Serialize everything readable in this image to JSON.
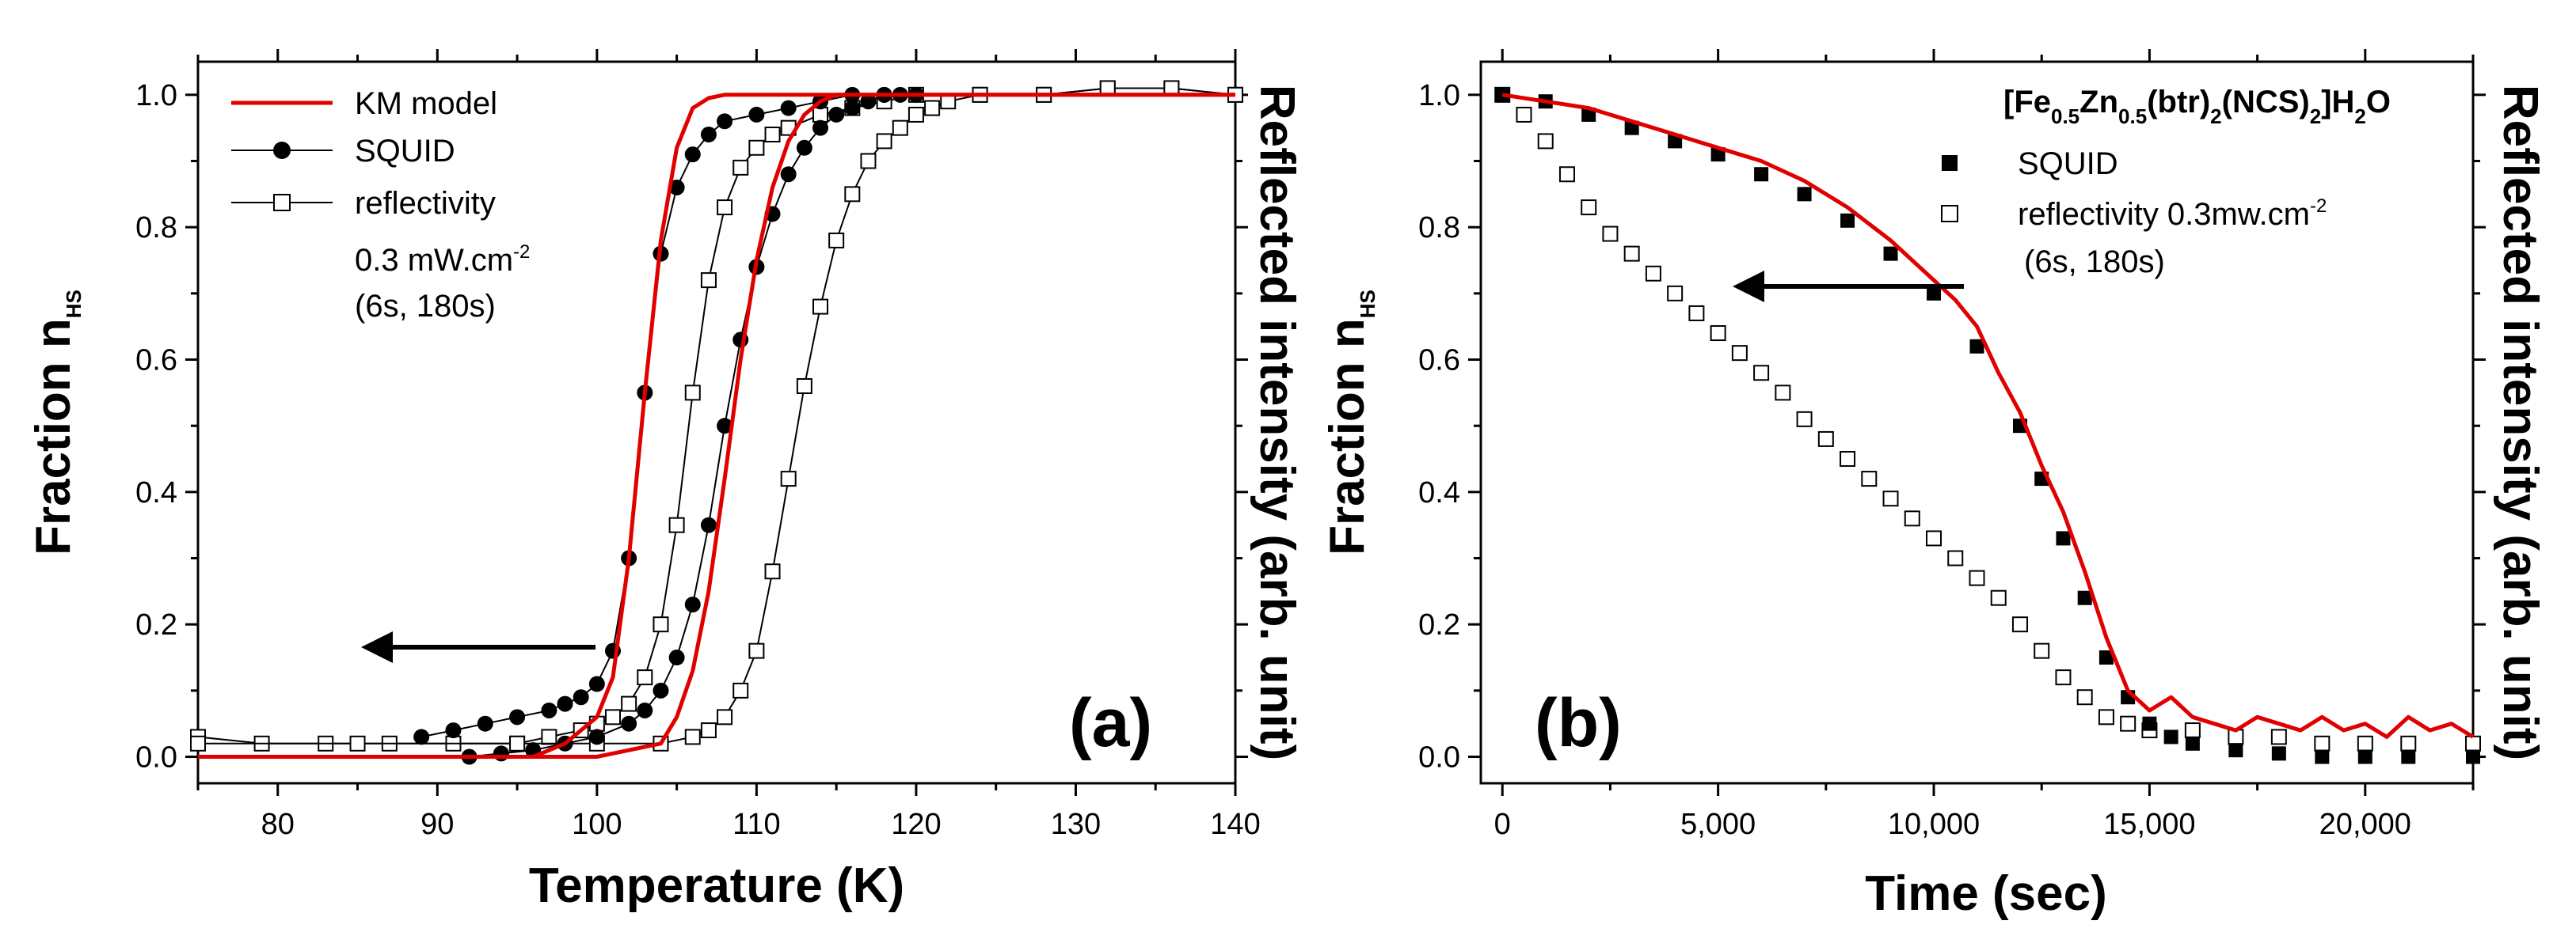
{
  "chart_data": [
    {
      "panel": "a",
      "type": "line",
      "panel_label": "(a)",
      "xlabel": "Temperature (K)",
      "ylabel": "Fraction n",
      "ylabel_sub": "HS",
      "y2label": "Reflected intensity (arb. unit)",
      "xlim": [
        75,
        140
      ],
      "ylim": [
        -0.04,
        1.05
      ],
      "xticks": [
        80,
        90,
        100,
        110,
        120,
        130,
        140
      ],
      "yticks": [
        0.0,
        0.2,
        0.4,
        0.6,
        0.8,
        1.0
      ],
      "ytick_labels": [
        "0.0",
        "0.2",
        "0.4",
        "0.6",
        "0.8",
        "1.0"
      ],
      "legend": [
        {
          "label": "KM model",
          "style": "red-line"
        },
        {
          "label": "SQUID",
          "style": "filled-circle"
        },
        {
          "label": "reflectivity",
          "style": "open-square"
        }
      ],
      "legend_note_1": "0.3 mW.cm",
      "legend_note_1_sup": "-2",
      "legend_note_2": "(6s, 180s)",
      "arrow_direction": "left",
      "series": [
        {
          "name": "KM model",
          "branch": "cooling",
          "x": [
            75,
            96,
            97,
            98,
            99,
            100,
            101,
            102,
            103,
            104,
            105,
            106,
            107,
            108,
            110,
            115,
            140
          ],
          "y": [
            0.0,
            0.0,
            0.01,
            0.02,
            0.04,
            0.06,
            0.12,
            0.3,
            0.55,
            0.78,
            0.92,
            0.98,
            0.995,
            1.0,
            1.0,
            1.0,
            1.0
          ]
        },
        {
          "name": "KM model",
          "branch": "heating",
          "x": [
            75,
            100,
            104,
            105,
            106,
            107,
            108,
            109,
            110,
            111,
            112,
            113,
            114,
            115,
            116,
            120,
            140
          ],
          "y": [
            0.0,
            0.0,
            0.02,
            0.06,
            0.13,
            0.25,
            0.42,
            0.6,
            0.75,
            0.86,
            0.93,
            0.97,
            0.99,
            1.0,
            1.0,
            1.0,
            1.0
          ]
        },
        {
          "name": "SQUID",
          "branch": "cooling",
          "x": [
            89,
            91,
            93,
            95,
            97,
            98,
            99,
            100,
            101,
            102,
            103,
            104,
            105,
            106,
            107,
            108,
            110,
            112,
            114,
            116,
            118,
            120
          ],
          "y": [
            0.03,
            0.04,
            0.05,
            0.06,
            0.07,
            0.08,
            0.09,
            0.11,
            0.16,
            0.3,
            0.55,
            0.76,
            0.86,
            0.91,
            0.94,
            0.96,
            0.97,
            0.98,
            0.99,
            1.0,
            1.0,
            1.0
          ]
        },
        {
          "name": "SQUID",
          "branch": "heating",
          "x": [
            92,
            94,
            96,
            98,
            100,
            102,
            103,
            104,
            105,
            106,
            107,
            108,
            109,
            110,
            111,
            112,
            113,
            114,
            115,
            116,
            117,
            118,
            119,
            120
          ],
          "y": [
            0.0,
            0.005,
            0.01,
            0.02,
            0.03,
            0.05,
            0.07,
            0.1,
            0.15,
            0.23,
            0.35,
            0.5,
            0.63,
            0.74,
            0.82,
            0.88,
            0.92,
            0.95,
            0.97,
            0.98,
            0.99,
            1.0,
            1.0,
            1.0
          ]
        },
        {
          "name": "reflectivity",
          "branch": "cooling",
          "x": [
            75,
            79,
            83,
            87,
            91,
            95,
            97,
            99,
            100,
            101,
            102,
            103,
            104,
            105,
            106,
            107,
            108,
            109,
            110,
            111,
            112,
            114,
            116,
            118,
            120,
            124,
            128,
            132,
            136,
            140
          ],
          "y": [
            0.03,
            0.02,
            0.02,
            0.02,
            0.02,
            0.02,
            0.03,
            0.04,
            0.05,
            0.06,
            0.08,
            0.12,
            0.2,
            0.35,
            0.55,
            0.72,
            0.83,
            0.89,
            0.92,
            0.94,
            0.95,
            0.97,
            0.98,
            0.99,
            1.0,
            1.0,
            1.0,
            1.01,
            1.01,
            1.0
          ]
        },
        {
          "name": "reflectivity",
          "branch": "heating",
          "x": [
            75,
            85,
            95,
            100,
            104,
            106,
            107,
            108,
            109,
            110,
            111,
            112,
            113,
            114,
            115,
            116,
            117,
            118,
            119,
            120,
            121,
            122,
            124,
            128,
            132,
            136,
            140
          ],
          "y": [
            0.02,
            0.02,
            0.02,
            0.02,
            0.02,
            0.03,
            0.04,
            0.06,
            0.1,
            0.16,
            0.28,
            0.42,
            0.56,
            0.68,
            0.78,
            0.85,
            0.9,
            0.93,
            0.95,
            0.97,
            0.98,
            0.99,
            1.0,
            1.0,
            1.01,
            1.01,
            1.0
          ]
        }
      ]
    },
    {
      "panel": "b",
      "type": "line",
      "panel_label": "(b)",
      "xlabel": "Time (sec)",
      "ylabel": "Fraction n",
      "ylabel_sub": "HS",
      "y2label": "Reflected intensity (arb. unit)",
      "xlim": [
        -500,
        22500
      ],
      "ylim": [
        -0.04,
        1.05
      ],
      "xticks": [
        0,
        5000,
        10000,
        15000,
        20000
      ],
      "xtick_labels": [
        "0",
        "5,000",
        "10,000",
        "15,000",
        "20,000"
      ],
      "yticks": [
        0.0,
        0.2,
        0.4,
        0.6,
        0.8,
        1.0
      ],
      "ytick_labels": [
        "0.0",
        "0.2",
        "0.4",
        "0.6",
        "0.8",
        "1.0"
      ],
      "formula": {
        "parts": [
          {
            "t": "[Fe",
            "k": "n"
          },
          {
            "t": "0.5",
            "k": "sub"
          },
          {
            "t": "Zn",
            "k": "n"
          },
          {
            "t": "0.5",
            "k": "sub"
          },
          {
            "t": "(btr)",
            "k": "n"
          },
          {
            "t": "2",
            "k": "sub"
          },
          {
            "t": "(NCS)",
            "k": "n"
          },
          {
            "t": "2",
            "k": "sub"
          },
          {
            "t": "]H",
            "k": "n"
          },
          {
            "t": "2",
            "k": "sub"
          },
          {
            "t": "O",
            "k": "n"
          }
        ]
      },
      "legend": [
        {
          "label": "SQUID",
          "style": "filled-square"
        },
        {
          "label": "reflectivity 0.3mw.cm",
          "label_sup": "-2",
          "style": "open-square"
        }
      ],
      "legend_note": "(6s, 180s)",
      "arrow_direction": "left",
      "series": [
        {
          "name": "SQUID",
          "x": [
            0,
            1000,
            2000,
            3000,
            4000,
            5000,
            6000,
            7000,
            8000,
            9000,
            10000,
            11000,
            12000,
            12500,
            13000,
            13500,
            14000,
            14500,
            15000,
            15500,
            16000,
            17000,
            18000,
            19000,
            20000,
            21000,
            22500
          ],
          "y": [
            1.0,
            0.99,
            0.97,
            0.95,
            0.93,
            0.91,
            0.88,
            0.85,
            0.81,
            0.76,
            0.7,
            0.62,
            0.5,
            0.42,
            0.33,
            0.24,
            0.15,
            0.09,
            0.05,
            0.03,
            0.02,
            0.01,
            0.005,
            0.0,
            0.0,
            0.0,
            0.0
          ]
        },
        {
          "name": "KM model",
          "x": [
            0,
            1000,
            2000,
            3000,
            4000,
            5000,
            6000,
            7000,
            8000,
            9000,
            10000,
            10500,
            11000,
            11500,
            12000,
            12500,
            13000,
            13500,
            14000,
            14500,
            15000,
            15500,
            16000,
            16500,
            17000,
            17500,
            18000,
            18500,
            19000,
            19500,
            20000,
            20500,
            21000,
            21500,
            22000,
            22500
          ],
          "y": [
            1.0,
            0.99,
            0.98,
            0.96,
            0.94,
            0.92,
            0.9,
            0.87,
            0.83,
            0.78,
            0.72,
            0.69,
            0.65,
            0.58,
            0.52,
            0.44,
            0.37,
            0.28,
            0.18,
            0.1,
            0.07,
            0.09,
            0.06,
            0.05,
            0.04,
            0.06,
            0.05,
            0.04,
            0.06,
            0.04,
            0.05,
            0.03,
            0.06,
            0.04,
            0.05,
            0.03
          ]
        },
        {
          "name": "reflectivity",
          "x": [
            0,
            500,
            1000,
            1500,
            2000,
            2500,
            3000,
            3500,
            4000,
            4500,
            5000,
            5500,
            6000,
            6500,
            7000,
            7500,
            8000,
            8500,
            9000,
            9500,
            10000,
            10500,
            11000,
            11500,
            12000,
            12500,
            13000,
            13500,
            14000,
            14500,
            15000,
            16000,
            17000,
            18000,
            19000,
            20000,
            21000,
            22500
          ],
          "y": [
            1.0,
            0.97,
            0.93,
            0.88,
            0.83,
            0.79,
            0.76,
            0.73,
            0.7,
            0.67,
            0.64,
            0.61,
            0.58,
            0.55,
            0.51,
            0.48,
            0.45,
            0.42,
            0.39,
            0.36,
            0.33,
            0.3,
            0.27,
            0.24,
            0.2,
            0.16,
            0.12,
            0.09,
            0.06,
            0.05,
            0.04,
            0.04,
            0.03,
            0.03,
            0.02,
            0.02,
            0.02,
            0.02
          ]
        }
      ]
    }
  ]
}
